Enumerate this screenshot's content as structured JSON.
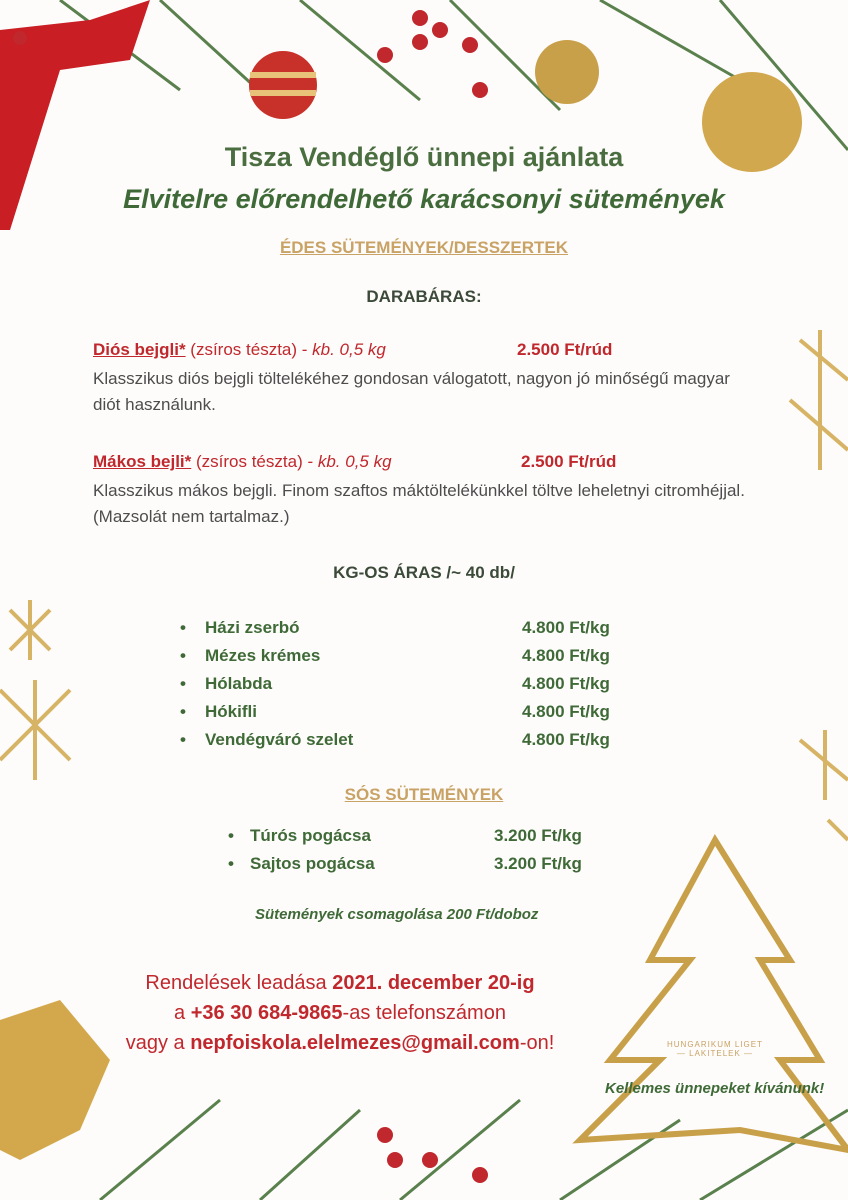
{
  "header": {
    "title": "Tisza Vendéglő ünnepi ajánlata",
    "subtitle": "Elvitelre előrendelhető karácsonyi sütemények"
  },
  "sweet": {
    "heading": "ÉDES SÜTEMÉNYEK/DESSZERTEK",
    "per_piece_label": "DARABÁRAS:",
    "items": [
      {
        "name": "Diós bejgli*",
        "detail": " (zsíros tészta) - ",
        "weight": "kb. 0,5 kg",
        "price": "2.500 Ft/rúd",
        "desc": "Klasszikus diós bejgli töltelékéhez gondosan válogatott, nagyon jó minőségű magyar diót használunk."
      },
      {
        "name": "Mákos bejli*",
        "detail": " (zsíros tészta) - ",
        "weight": "kb. 0,5 kg",
        "price": "2.500 Ft/rúd",
        "desc": "Klasszikus mákos bejgli. Finom szaftos máktöltelékünkkel töltve leheletnyi citromhéjjal. (Mazsolát nem tartalmaz.)"
      }
    ],
    "per_kg_label": "KG-OS ÁRAS /~ 40 db/",
    "kg_items": [
      {
        "name": "Házi zserbó",
        "price": "4.800 Ft/kg"
      },
      {
        "name": "Mézes krémes",
        "price": "4.800 Ft/kg"
      },
      {
        "name": "Hólabda",
        "price": "4.800 Ft/kg"
      },
      {
        "name": "Hókifli",
        "price": "4.800 Ft/kg"
      },
      {
        "name": "Vendégváró szelet",
        "price": "4.800 Ft/kg"
      }
    ]
  },
  "salty": {
    "heading": "SÓS SÜTEMÉNYEK",
    "items": [
      {
        "name": "Túrós pogácsa",
        "price": "3.200 Ft/kg"
      },
      {
        "name": "Sajtos pogácsa",
        "price": "3.200 Ft/kg"
      }
    ]
  },
  "packaging_note": "Sütemények csomagolása 200 Ft/doboz",
  "order": {
    "l1a": "Rendelések leadása ",
    "l1b": "2021. december 20-ig",
    "l2a": "a ",
    "l2b": "+36 30 684-9865",
    "l2c": "-as telefonszámon",
    "l3a": "vagy a ",
    "l3b": "nepfoiskola.elelmezes@gmail.com",
    "l3c": "-on!"
  },
  "logo": {
    "line1": "HUNGARIKUM LIGET",
    "line2": "— LAKITELEK —"
  },
  "wish": "Kellemes ünnepeket kívánunk!",
  "colors": {
    "green": "#3f6a38",
    "red": "#c0282d",
    "gold": "#c9a265",
    "text": "#4d4d4d"
  }
}
